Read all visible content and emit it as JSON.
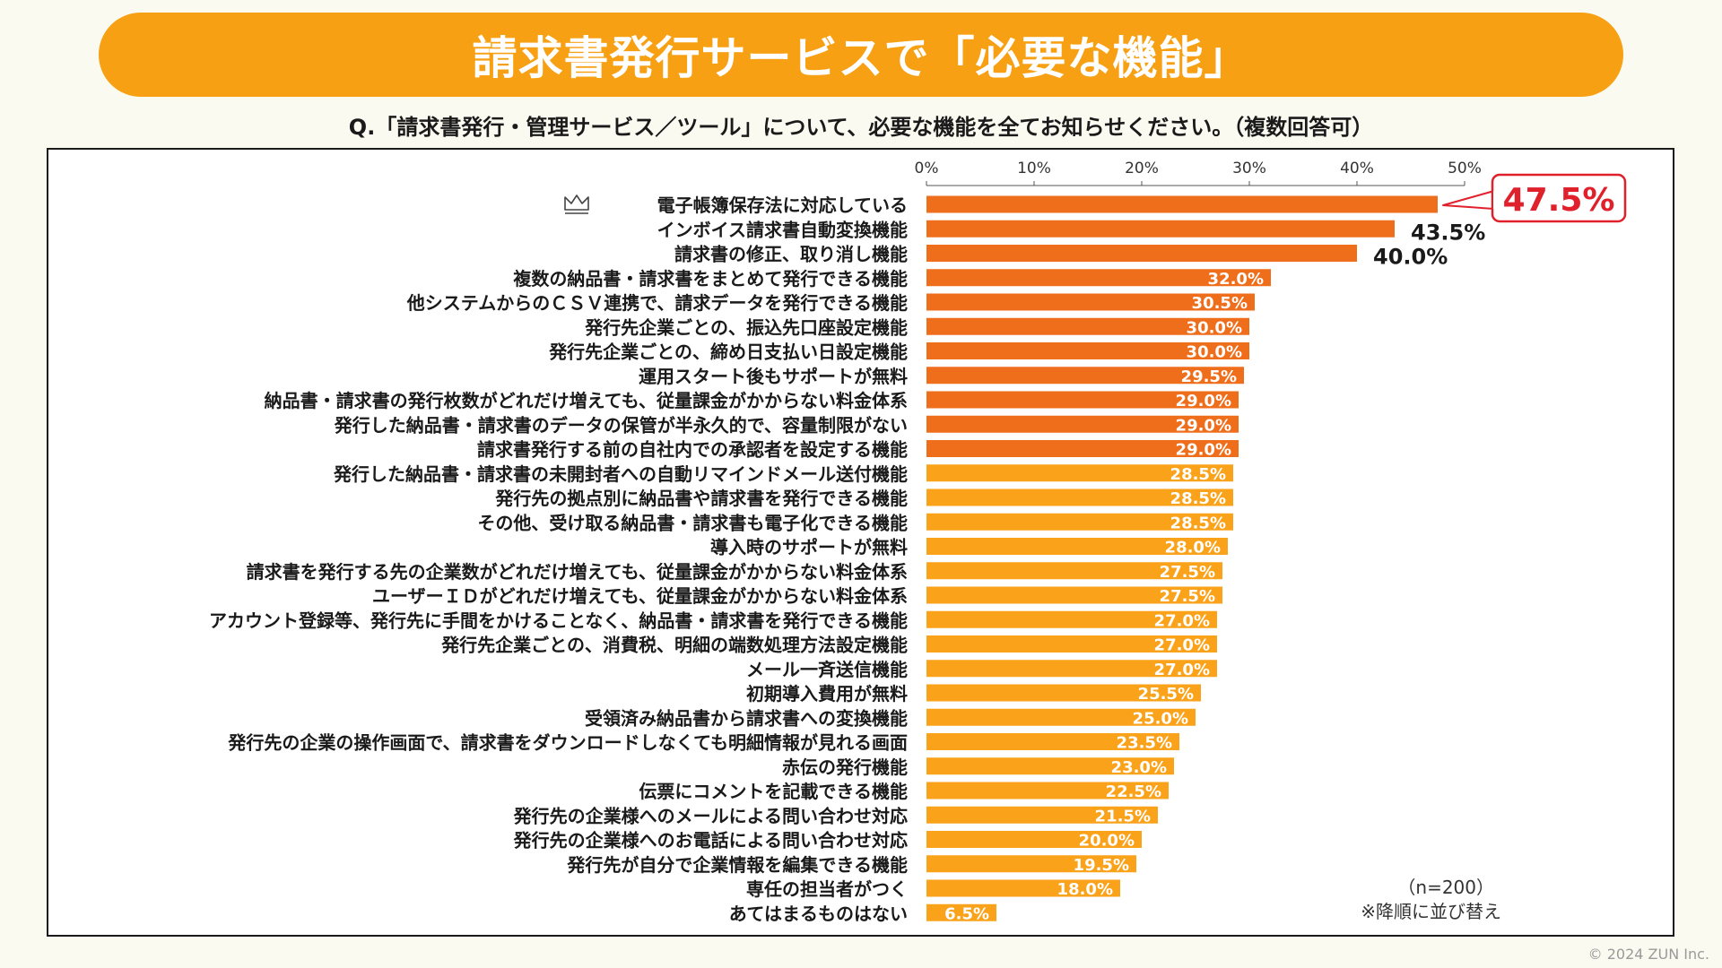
{
  "title": "請求書発行サービスで「必要な機能」",
  "question": "Q.「請求書発行・管理サービス／ツール」について、必要な機能を全てお知らせください。（複数回答可）",
  "copyright": "© 2024 ZUN Inc.",
  "colors": {
    "banner": "#f7a013",
    "bar_dark": "#ef6e1b",
    "bar_light": "#f9a21a",
    "callout": "#e0202a"
  },
  "chart_data": {
    "type": "bar",
    "orientation": "horizontal",
    "xlim": [
      0,
      50
    ],
    "ticks": [
      0,
      10,
      20,
      30,
      40,
      50
    ],
    "tick_labels": [
      "0%",
      "10%",
      "20%",
      "30%",
      "40%",
      "50%"
    ],
    "categories": [
      "電子帳簿保存法に対応している",
      "インボイス請求書自動変換機能",
      "請求書の修正、取り消し機能",
      "複数の納品書・請求書をまとめて発行できる機能",
      "他システムからのＣＳＶ連携で、請求データを発行できる機能",
      "発行先企業ごとの、振込先口座設定機能",
      "発行先企業ごとの、締め日支払い日設定機能",
      "運用スタート後もサポートが無料",
      "納品書・請求書の発行枚数がどれだけ増えても、従量課金がかからない料金体系",
      "発行した納品書・請求書のデータの保管が半永久的で、容量制限がない",
      "請求書発行する前の自社内での承認者を設定する機能",
      "発行した納品書・請求書の未開封者への自動リマインドメール送付機能",
      "発行先の拠点別に納品書や請求書を発行できる機能",
      "その他、受け取る納品書・請求書も電子化できる機能",
      "導入時のサポートが無料",
      "請求書を発行する先の企業数がどれだけ増えても、従量課金がかからない料金体系",
      "ユーザーＩＤがどれだけ増えても、従量課金がかからない料金体系",
      "アカウント登録等、発行先に手間をかけることなく、納品書・請求書を発行できる機能",
      "発行先企業ごとの、消費税、明細の端数処理方法設定機能",
      "メール一斉送信機能",
      "初期導入費用が無料",
      "受領済み納品書から請求書への変換機能",
      "発行先の企業の操作画面で、請求書をダウンロードしなくても明細情報が見れる画面",
      "赤伝の発行機能",
      "伝票にコメントを記載できる機能",
      "発行先の企業様へのメールによる問い合わせ対応",
      "発行先の企業様へのお電話による問い合わせ対応",
      "発行先が自分で企業情報を編集できる機能",
      "専任の担当者がつく",
      "あてはまるものはない"
    ],
    "values": [
      47.5,
      43.5,
      40.0,
      32.0,
      30.5,
      30.0,
      30.0,
      29.5,
      29.0,
      29.0,
      29.0,
      28.5,
      28.5,
      28.5,
      28.0,
      27.5,
      27.5,
      27.0,
      27.0,
      27.0,
      25.5,
      25.0,
      23.5,
      23.0,
      22.5,
      21.5,
      20.0,
      19.5,
      18.0,
      6.5
    ],
    "value_labels": [
      "47.5%",
      "43.5%",
      "40.0%",
      "32.0%",
      "30.5%",
      "30.0%",
      "30.0%",
      "29.5%",
      "29.0%",
      "29.0%",
      "29.0%",
      "28.5%",
      "28.5%",
      "28.5%",
      "28.0%",
      "27.5%",
      "27.5%",
      "27.0%",
      "27.0%",
      "27.0%",
      "25.5%",
      "25.0%",
      "23.5%",
      "23.0%",
      "22.5%",
      "21.5%",
      "20.0%",
      "19.5%",
      "18.0%",
      "6.5%"
    ],
    "highlight_top_n": 11,
    "top_item_icon": "crown-icon",
    "sample_note": "（n=200）",
    "sort_note": "※降順に並び替え"
  }
}
